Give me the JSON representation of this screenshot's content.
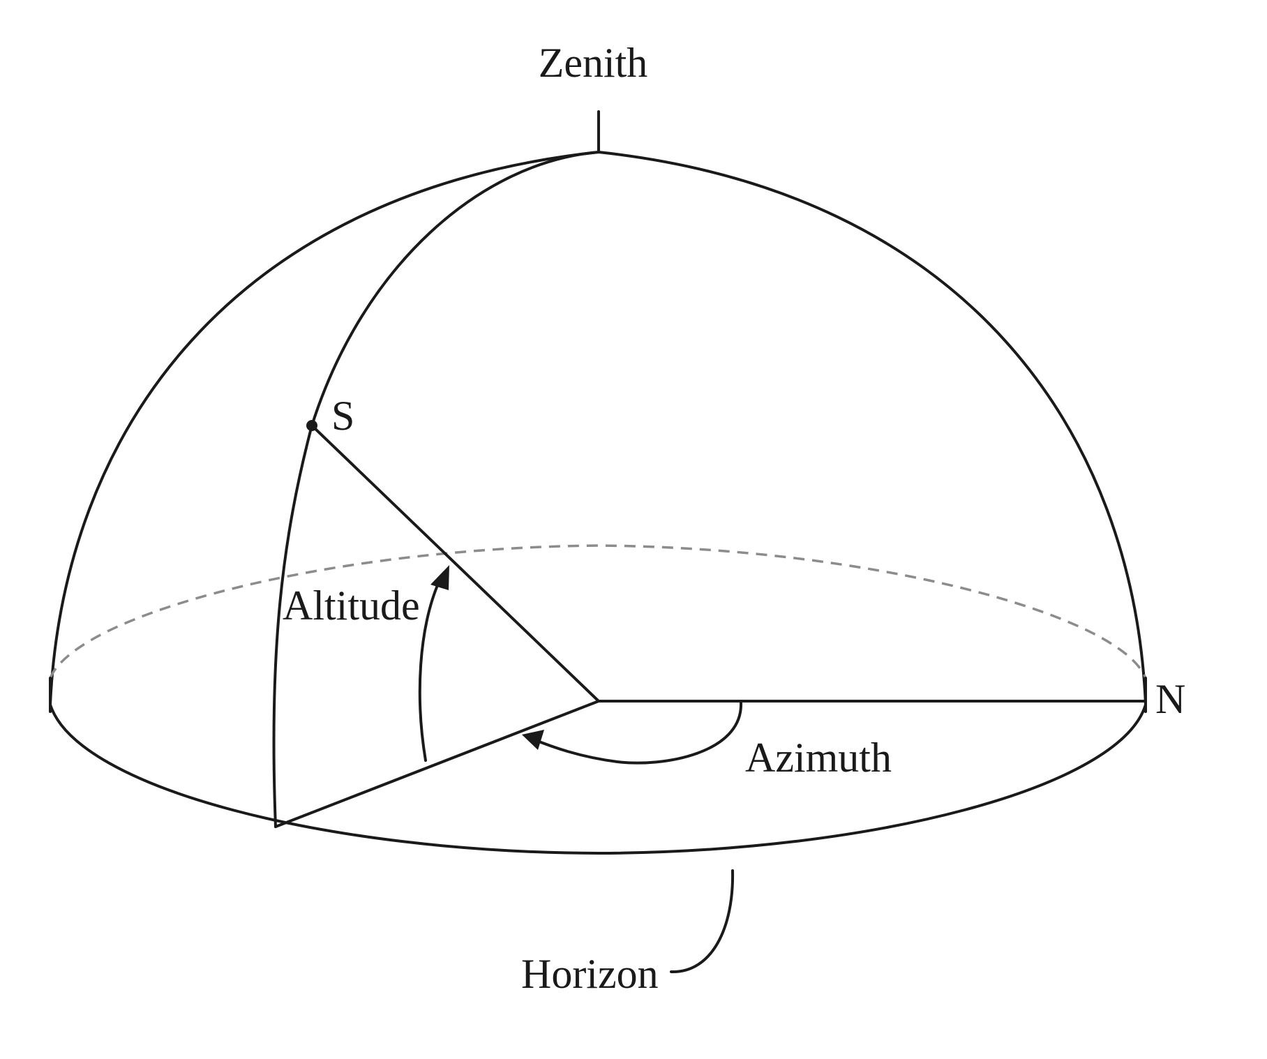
{
  "labels": {
    "zenith": "Zenith",
    "star": "S",
    "north": "N",
    "altitude": "Altitude",
    "azimuth": "Azimuth",
    "horizon": "Horizon"
  },
  "colors": {
    "line": "#1a1a1a",
    "hidden_horizon": "#8c8c8c",
    "background": "#ffffff"
  }
}
